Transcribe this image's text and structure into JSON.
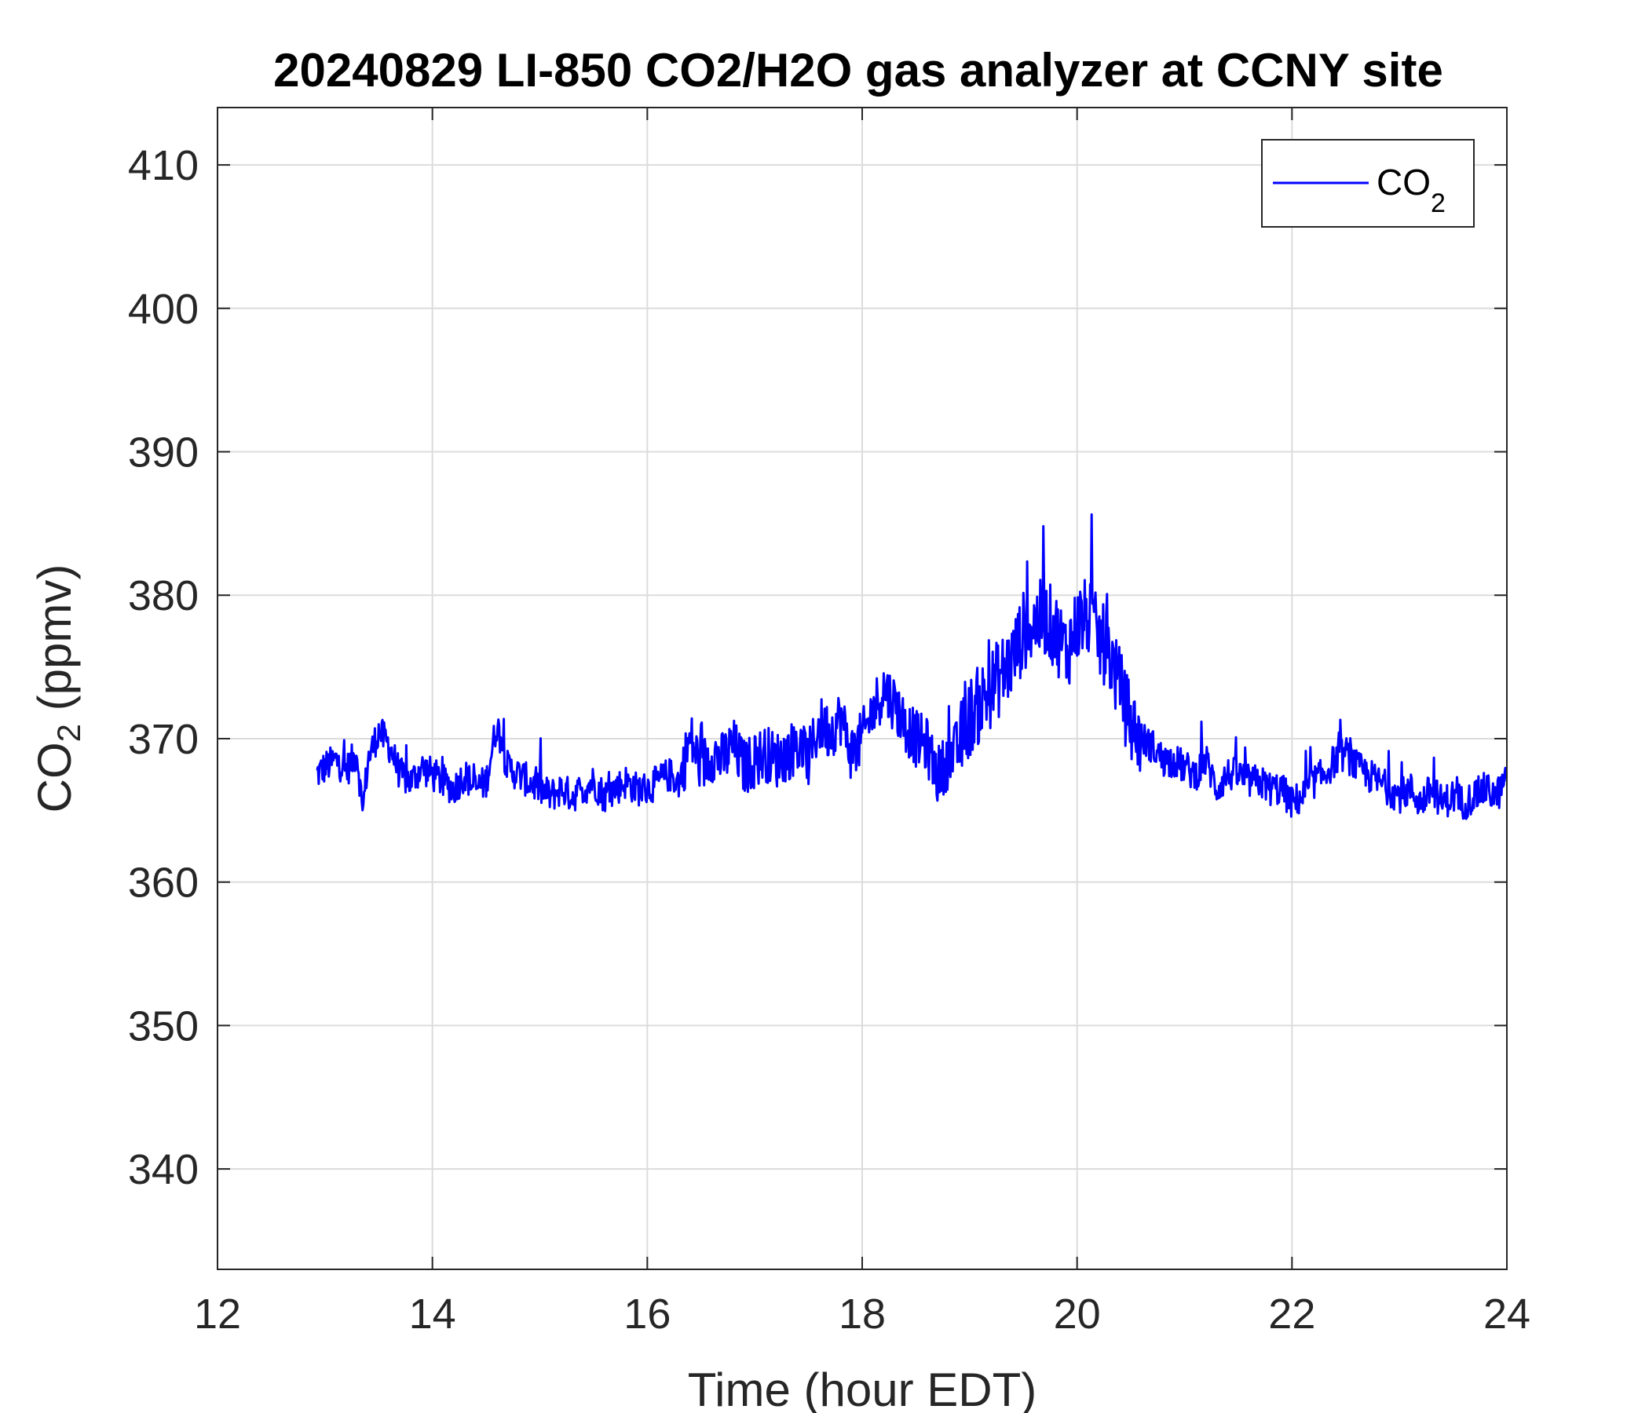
{
  "chart_data": {
    "type": "line",
    "title": "20240829 LI-850 CO2/H2O gas analyzer at CCNY site",
    "xlabel": "Time (hour EDT)",
    "ylabel": {
      "main": "CO",
      "sub": "2",
      "rest": " (ppmv)"
    },
    "xlim": [
      12,
      24
    ],
    "ylim": [
      333,
      414
    ],
    "xticks": [
      12,
      14,
      16,
      18,
      20,
      22,
      24
    ],
    "yticks": [
      340,
      350,
      360,
      370,
      380,
      390,
      400,
      410
    ],
    "grid": true,
    "legend": {
      "placement": "top-right",
      "label_main": "CO",
      "label_sub": "2"
    },
    "series": [
      {
        "name": "CO2",
        "color": "#0000ff",
        "x": [
          12.92,
          13.0,
          13.1,
          13.2,
          13.3,
          13.35,
          13.4,
          13.5,
          13.6,
          13.7,
          13.8,
          13.9,
          14.0,
          14.1,
          14.2,
          14.3,
          14.4,
          14.5,
          14.6,
          14.7,
          14.8,
          14.9,
          15.0,
          15.1,
          15.2,
          15.3,
          15.4,
          15.5,
          15.6,
          15.7,
          15.8,
          15.9,
          16.0,
          16.1,
          16.2,
          16.3,
          16.4,
          16.5,
          16.6,
          16.7,
          16.8,
          16.9,
          17.0,
          17.1,
          17.2,
          17.3,
          17.4,
          17.5,
          17.6,
          17.7,
          17.8,
          17.9,
          18.0,
          18.1,
          18.2,
          18.3,
          18.4,
          18.5,
          18.6,
          18.7,
          18.8,
          18.9,
          19.0,
          19.1,
          19.2,
          19.3,
          19.4,
          19.5,
          19.6,
          19.7,
          19.8,
          19.9,
          20.0,
          20.1,
          20.2,
          20.3,
          20.4,
          20.5,
          20.6,
          20.7,
          20.8,
          20.9,
          21.0,
          21.1,
          21.2,
          21.3,
          21.4,
          21.5,
          21.6,
          21.7,
          21.8,
          21.9,
          22.0,
          22.1,
          22.2,
          22.3,
          22.4,
          22.5,
          22.6,
          22.7,
          22.8,
          22.9,
          23.0,
          23.1,
          23.2,
          23.3,
          23.4,
          23.5,
          23.6,
          23.7,
          23.8,
          23.9,
          24.0
        ],
        "y": [
          367.5,
          368.0,
          368.5,
          367.8,
          369.0,
          364.8,
          368.5,
          370.5,
          369.5,
          367.5,
          367.0,
          368.0,
          367.5,
          367.0,
          366.5,
          367.5,
          366.5,
          367.0,
          371.0,
          368.0,
          367.5,
          367.0,
          366.5,
          366.0,
          366.5,
          366.0,
          366.5,
          367.0,
          366.0,
          366.5,
          367.0,
          366.5,
          366.5,
          367.0,
          367.5,
          367.0,
          370.0,
          368.0,
          369.0,
          368.5,
          369.5,
          368.0,
          368.5,
          369.0,
          368.5,
          369.0,
          369.5,
          368.5,
          371.0,
          370.5,
          371.5,
          369.0,
          370.0,
          372.0,
          373.5,
          372.5,
          371.0,
          370.0,
          369.5,
          367.5,
          368.5,
          369.5,
          371.5,
          372.5,
          373.5,
          374.5,
          375.5,
          377.5,
          378.0,
          378.5,
          377.5,
          376.0,
          378.0,
          378.5,
          377.0,
          376.0,
          373.5,
          371.0,
          370.0,
          369.5,
          368.5,
          368.5,
          368.0,
          367.5,
          368.5,
          366.5,
          367.5,
          367.5,
          367.0,
          367.0,
          366.5,
          366.5,
          365.5,
          366.0,
          367.0,
          367.5,
          368.5,
          369.0,
          368.0,
          367.5,
          367.0,
          366.5,
          366.0,
          366.5,
          365.5,
          366.5,
          365.5,
          366.0,
          365.5,
          366.0,
          366.5,
          366.0,
          367.0
        ]
      }
    ]
  }
}
